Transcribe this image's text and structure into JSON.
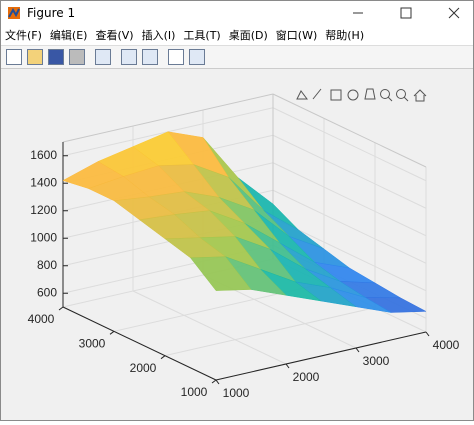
{
  "window": {
    "title": "Figure 1"
  },
  "menu": [
    "文件(F)",
    "编辑(E)",
    "查看(V)",
    "插入(I)",
    "工具(T)",
    "桌面(D)",
    "窗口(W)",
    "帮助(H)"
  ],
  "chart_data": {
    "type": "surface",
    "x": [
      1000,
      1500,
      2000,
      2500,
      3000,
      3500,
      4000
    ],
    "y": [
      1000,
      1500,
      2000,
      2500,
      3000,
      3500,
      4000
    ],
    "z": [
      [
        1150,
        1100,
        1000,
        900,
        800,
        700,
        650
      ],
      [
        1300,
        1250,
        1100,
        950,
        850,
        720,
        660
      ],
      [
        1350,
        1300,
        1250,
        1100,
        900,
        750,
        680
      ],
      [
        1400,
        1380,
        1350,
        1200,
        1000,
        800,
        700
      ],
      [
        1450,
        1420,
        1400,
        1300,
        1150,
        900,
        750
      ],
      [
        1450,
        1480,
        1500,
        1450,
        1300,
        1000,
        800
      ],
      [
        1420,
        1500,
        1550,
        1600,
        1500,
        1150,
        900
      ]
    ],
    "xlim": [
      1000,
      4000
    ],
    "ylim": [
      1000,
      4000
    ],
    "zlim": [
      500,
      1700
    ],
    "xticks": [
      1000,
      2000,
      3000,
      4000
    ],
    "yticks": [
      1000,
      2000,
      3000,
      4000
    ],
    "zticks": [
      600,
      800,
      1000,
      1200,
      1400,
      1600
    ],
    "grid": true,
    "colormap": [
      "#3e26a8",
      "#2e87f0",
      "#15b9a8",
      "#a1c74b",
      "#fcb93c",
      "#f9fb0e"
    ]
  }
}
